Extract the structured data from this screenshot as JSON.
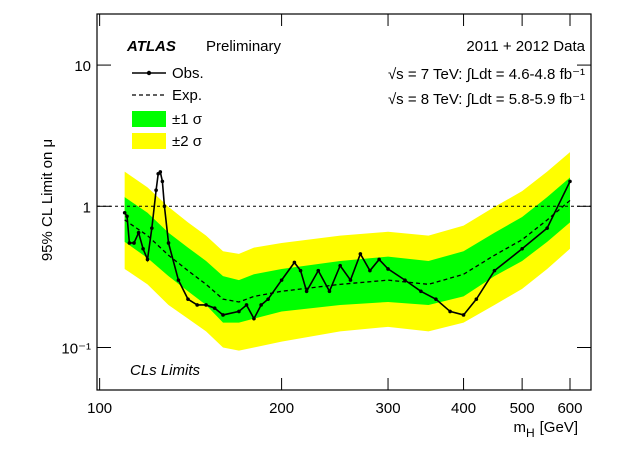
{
  "chart_data": {
    "type": "limit-band",
    "header": "ATLAS",
    "subheader": "Preliminary",
    "data_label": "2011 + 2012 Data",
    "lumi_lines": [
      "√s = 7 TeV: ∫Ldt = 4.6-4.8 fb⁻¹",
      "√s = 8 TeV: ∫Ldt = 5.8-5.9 fb⁻¹"
    ],
    "annotation": "CLs Limits",
    "y_label": "95% CL Limit on μ",
    "x_label": {
      "symbol": "m",
      "subscript": "H",
      "unit": "[GeV]"
    },
    "log_x": true,
    "log_y": true,
    "xlim": [
      99,
      650
    ],
    "ylim": [
      0.05,
      23
    ],
    "xticks": [
      100,
      200,
      300,
      400,
      500,
      600
    ],
    "yticks": [
      {
        "value": 0.1,
        "label": "10⁻¹"
      },
      1,
      10
    ],
    "reference_line": 1,
    "x": [
      110,
      120,
      130,
      140,
      150,
      160,
      170,
      180,
      200,
      250,
      300,
      350,
      400,
      450,
      500,
      550,
      600
    ],
    "series": [
      {
        "name": "Obs.",
        "color": "#000000",
        "markers": true,
        "x": [
          110,
          111,
          112,
          114,
          116,
          118,
          120,
          122,
          124,
          125,
          126,
          127,
          128,
          130,
          135,
          140,
          145,
          150,
          155,
          160,
          170,
          175,
          180,
          185,
          190,
          200,
          210,
          215,
          220,
          230,
          240,
          250,
          260,
          270,
          280,
          290,
          300,
          320,
          340,
          360,
          380,
          400,
          420,
          450,
          500,
          550,
          600
        ],
        "values": [
          0.9,
          0.85,
          0.55,
          0.55,
          0.65,
          0.5,
          0.42,
          0.7,
          1.3,
          1.7,
          1.75,
          1.5,
          1.0,
          0.55,
          0.3,
          0.22,
          0.2,
          0.2,
          0.19,
          0.17,
          0.18,
          0.2,
          0.16,
          0.2,
          0.22,
          0.3,
          0.4,
          0.35,
          0.25,
          0.35,
          0.25,
          0.38,
          0.3,
          0.46,
          0.35,
          0.42,
          0.36,
          0.3,
          0.25,
          0.22,
          0.18,
          0.17,
          0.22,
          0.35,
          0.5,
          0.7,
          1.5
        ]
      },
      {
        "name": "Exp.",
        "color": "#000000",
        "dashed": true,
        "values": [
          0.8,
          0.62,
          0.45,
          0.35,
          0.28,
          0.22,
          0.21,
          0.23,
          0.25,
          0.28,
          0.3,
          0.28,
          0.33,
          0.45,
          0.58,
          0.8,
          1.1
        ]
      }
    ],
    "bands": [
      {
        "name": "±1 σ",
        "color": "#00ff00",
        "lower": [
          0.56,
          0.43,
          0.32,
          0.25,
          0.2,
          0.15,
          0.15,
          0.16,
          0.18,
          0.2,
          0.21,
          0.2,
          0.23,
          0.32,
          0.41,
          0.56,
          0.77
        ],
        "upper": [
          1.16,
          0.9,
          0.65,
          0.51,
          0.41,
          0.32,
          0.3,
          0.33,
          0.36,
          0.41,
          0.44,
          0.41,
          0.48,
          0.65,
          0.84,
          1.16,
          1.6
        ]
      },
      {
        "name": "±2 σ",
        "color": "#ffff00",
        "lower": [
          0.36,
          0.28,
          0.2,
          0.16,
          0.13,
          0.1,
          0.095,
          0.1,
          0.11,
          0.13,
          0.14,
          0.13,
          0.15,
          0.2,
          0.26,
          0.36,
          0.5
        ],
        "upper": [
          1.76,
          1.36,
          0.99,
          0.77,
          0.62,
          0.48,
          0.46,
          0.51,
          0.55,
          0.62,
          0.66,
          0.62,
          0.73,
          0.99,
          1.28,
          1.76,
          2.42
        ]
      }
    ]
  }
}
